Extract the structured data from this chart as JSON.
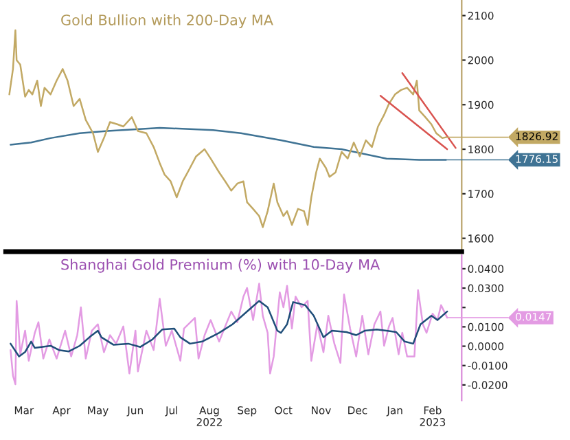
{
  "chart_data": [
    {
      "type": "line",
      "title": "Gold Bullion with 200-Day MA",
      "tick_labels": "y",
      "xlim": [
        "2022-02-14",
        "2023-02-25"
      ],
      "xticks": [
        {
          "value": "2022-03-01",
          "label": null
        },
        {
          "value": "2022-04-01",
          "label": null
        },
        {
          "value": "2022-05-01",
          "label": null
        },
        {
          "value": "2022-06-01",
          "label": null
        },
        {
          "value": "2022-07-01",
          "label": null
        },
        {
          "value": "2022-08-01",
          "label": null
        },
        {
          "value": "2022-09-01",
          "label": null
        },
        {
          "value": "2022-10-01",
          "label": null
        },
        {
          "value": "2022-11-01",
          "label": null
        },
        {
          "value": "2022-12-01",
          "label": null
        },
        {
          "value": "2023-01-01",
          "label": null
        },
        {
          "value": "2023-02-01",
          "label": null
        }
      ],
      "ylim": [
        1570,
        2135
      ],
      "yticks": [
        1600,
        1700,
        1800,
        1900,
        2000,
        2100
      ],
      "series": [
        {
          "color": "#3f7394",
          "value_labels": [
            null,
            null,
            null,
            null,
            null,
            null,
            null,
            null,
            null,
            null,
            null,
            null,
            null,
            "1776.15"
          ],
          "x": [
            "2022-02-18",
            "2022-03-07",
            "2022-03-23",
            "2022-04-16",
            "2022-05-09",
            "2022-06-21",
            "2022-08-04",
            "2022-08-27",
            "2022-09-29",
            "2022-10-26",
            "2022-11-18",
            "2022-12-25",
            "2023-01-21",
            "2023-02-12"
          ],
          "values": [
            1810,
            1815,
            1825,
            1836,
            1841,
            1848,
            1843,
            1836,
            1820,
            1805,
            1800,
            1779,
            1776,
            1776.15
          ]
        },
        {
          "color": "#c2a964",
          "value_labels": [
            null,
            null,
            null,
            null,
            null,
            null,
            null,
            null,
            null,
            null,
            null,
            null,
            null,
            null,
            null,
            null,
            null,
            null,
            null,
            null,
            null,
            null,
            null,
            null,
            null,
            null,
            null,
            null,
            null,
            null,
            null,
            null,
            null,
            null,
            null,
            null,
            null,
            null,
            null,
            null,
            null,
            null,
            null,
            null,
            null,
            null,
            null,
            null,
            null,
            null,
            null,
            null,
            null,
            null,
            null,
            null,
            null,
            null,
            null,
            null,
            null,
            null,
            null,
            null,
            null,
            null,
            null,
            null,
            null,
            null,
            null,
            null,
            null,
            null,
            null,
            null,
            null,
            null,
            null,
            null,
            "1826.92"
          ],
          "x": [
            "2022-02-17",
            "2022-02-20",
            "2022-02-22",
            "2022-02-23",
            "2022-02-26",
            "2022-03-02",
            "2022-03-05",
            "2022-03-08",
            "2022-03-12",
            "2022-03-15",
            "2022-03-18",
            "2022-03-23",
            "2022-03-28",
            "2022-04-02",
            "2022-04-06",
            "2022-04-11",
            "2022-04-16",
            "2022-04-21",
            "2022-04-27",
            "2022-05-01",
            "2022-05-06",
            "2022-05-11",
            "2022-05-17",
            "2022-05-22",
            "2022-05-29",
            "2022-06-03",
            "2022-06-10",
            "2022-06-16",
            "2022-06-21",
            "2022-06-25",
            "2022-06-30",
            "2022-07-05",
            "2022-07-10",
            "2022-07-15",
            "2022-07-21",
            "2022-07-28",
            "2022-08-02",
            "2022-08-09",
            "2022-08-14",
            "2022-08-19",
            "2022-08-24",
            "2022-08-29",
            "2022-09-01",
            "2022-09-06",
            "2022-09-11",
            "2022-09-14",
            "2022-09-18",
            "2022-09-23",
            "2022-09-26",
            "2022-10-01",
            "2022-10-04",
            "2022-10-08",
            "2022-10-13",
            "2022-10-18",
            "2022-10-21",
            "2022-10-24",
            "2022-10-28",
            "2022-10-31",
            "2022-11-05",
            "2022-11-08",
            "2022-11-13",
            "2022-11-18",
            "2022-11-23",
            "2022-11-28",
            "2022-12-03",
            "2022-12-08",
            "2022-12-13",
            "2022-12-18",
            "2022-12-23",
            "2022-12-27",
            "2023-01-01",
            "2023-01-06",
            "2023-01-11",
            "2023-01-16",
            "2023-01-19",
            "2023-01-21",
            "2023-01-26",
            "2023-01-31",
            "2023-02-04",
            "2023-02-09",
            "2023-02-12"
          ],
          "values": [
            1923,
            1980,
            2067,
            2000,
            1990,
            1918,
            1933,
            1923,
            1954,
            1897,
            1938,
            1923,
            1954,
            1980,
            1954,
            1897,
            1913,
            1866,
            1836,
            1794,
            1825,
            1861,
            1856,
            1851,
            1872,
            1841,
            1836,
            1805,
            1769,
            1743,
            1728,
            1692,
            1728,
            1753,
            1784,
            1800,
            1779,
            1748,
            1728,
            1707,
            1723,
            1728,
            1681,
            1666,
            1650,
            1625,
            1661,
            1723,
            1681,
            1650,
            1661,
            1630,
            1666,
            1661,
            1630,
            1692,
            1748,
            1779,
            1758,
            1738,
            1748,
            1794,
            1779,
            1815,
            1784,
            1820,
            1805,
            1851,
            1877,
            1902,
            1923,
            1933,
            1938,
            1923,
            1954,
            1887,
            1872,
            1856,
            1836,
            1825,
            1826.92
          ]
        },
        {
          "color": "#d9534f",
          "x": [
            "2022-12-20",
            "2023-02-13"
          ],
          "values": [
            1920,
            1800
          ]
        },
        {
          "color": "#d9534f",
          "x": [
            "2023-01-07",
            "2023-02-20"
          ],
          "values": [
            1971,
            1803
          ]
        }
      ]
    },
    {
      "type": "line",
      "title": "Shanghai Gold Premium (%) with 10-Day MA",
      "xlim": [
        "2022-02-14",
        "2023-02-25"
      ],
      "xticks": [
        {
          "value": "2022-03-01",
          "label": "Mar"
        },
        {
          "value": "2022-04-01",
          "label": "Apr"
        },
        {
          "value": "2022-05-01",
          "label": "May"
        },
        {
          "value": "2022-06-01",
          "label": "Jun"
        },
        {
          "value": "2022-07-01",
          "label": "Jul"
        },
        {
          "value": "2022-08-01",
          "label": "Aug\n2022"
        },
        {
          "value": "2022-09-01",
          "label": "Sep"
        },
        {
          "value": "2022-10-01",
          "label": "Oct"
        },
        {
          "value": "2022-11-01",
          "label": "Nov"
        },
        {
          "value": "2022-12-01",
          "label": "Dec"
        },
        {
          "value": "2023-01-01",
          "label": "Jan"
        },
        {
          "value": "2023-02-01",
          "label": "Feb\n2023"
        }
      ],
      "ylim": [
        -0.028,
        0.047
      ],
      "yticks": [
        {
          "value": -0.02,
          "label": "-0.0200"
        },
        {
          "value": -0.01,
          "label": "-0.0100"
        },
        {
          "value": 0.0,
          "label": "0.0000"
        },
        {
          "value": 0.01,
          "label": "0.0100"
        },
        {
          "value": 0.02,
          "label": null
        },
        {
          "value": 0.03,
          "label": "0.0300"
        },
        {
          "value": 0.04,
          "label": "0.0400"
        }
      ],
      "series": [
        {
          "color": "#e39be3",
          "value_labels": [
            null,
            null,
            null,
            null,
            null,
            null,
            null,
            null,
            null,
            null,
            null,
            null,
            null,
            null,
            null,
            null,
            null,
            null,
            null,
            null,
            null,
            null,
            null,
            null,
            null,
            null,
            null,
            null,
            null,
            null,
            null,
            null,
            null,
            null,
            null,
            null,
            null,
            null,
            null,
            null,
            null,
            null,
            null,
            null,
            null,
            null,
            null,
            null,
            null,
            null,
            null,
            null,
            null,
            null,
            null,
            null,
            null,
            null,
            null,
            null,
            null,
            null,
            null,
            null,
            null,
            null,
            null,
            null,
            null,
            null,
            null,
            null,
            null,
            null,
            null,
            null,
            null,
            null,
            null,
            null,
            null,
            null,
            "0.0147"
          ],
          "x": [
            "2022-02-18",
            "2022-02-20",
            "2022-02-22",
            "2022-02-23",
            "2022-02-26",
            "2022-03-02",
            "2022-03-05",
            "2022-03-10",
            "2022-03-13",
            "2022-03-17",
            "2022-03-22",
            "2022-03-28",
            "2022-04-04",
            "2022-04-09",
            "2022-04-14",
            "2022-04-17",
            "2022-04-21",
            "2022-04-26",
            "2022-05-01",
            "2022-05-06",
            "2022-05-11",
            "2022-05-16",
            "2022-05-22",
            "2022-05-27",
            "2022-06-01",
            "2022-06-03",
            "2022-06-10",
            "2022-06-16",
            "2022-06-21",
            "2022-06-26",
            "2022-07-01",
            "2022-07-08",
            "2022-07-11",
            "2022-07-20",
            "2022-07-23",
            "2022-07-28",
            "2022-08-02",
            "2022-08-09",
            "2022-08-14",
            "2022-08-19",
            "2022-08-24",
            "2022-08-29",
            "2022-09-01",
            "2022-09-06",
            "2022-09-11",
            "2022-09-14",
            "2022-09-18",
            "2022-09-20",
            "2022-09-23",
            "2022-09-28",
            "2022-10-01",
            "2022-10-04",
            "2022-10-08",
            "2022-10-11",
            "2022-10-16",
            "2022-10-21",
            "2022-10-24",
            "2022-10-29",
            "2022-11-03",
            "2022-11-07",
            "2022-11-12",
            "2022-11-17",
            "2022-11-20",
            "2022-11-25",
            "2022-11-30",
            "2022-12-05",
            "2022-12-10",
            "2022-12-15",
            "2022-12-20",
            "2022-12-23",
            "2022-12-27",
            "2022-12-30",
            "2023-01-04",
            "2023-01-07",
            "2023-01-11",
            "2023-01-17",
            "2023-01-20",
            "2023-01-24",
            "2023-01-27",
            "2023-02-01",
            "2023-02-05",
            "2023-02-08",
            "2023-02-13"
          ],
          "values": [
            -0.002,
            -0.0152,
            -0.0197,
            0.0234,
            -0.0042,
            0.008,
            -0.0075,
            0.0069,
            0.0124,
            -0.0064,
            0.0035,
            -0.0064,
            0.008,
            -0.0053,
            0.0057,
            0.0201,
            -0.0064,
            0.008,
            0.0113,
            -0.0031,
            0.0057,
            0.0013,
            0.0102,
            -0.0141,
            0.008,
            -0.013,
            0.008,
            -0.002,
            0.0245,
            0.0002,
            0.008,
            -0.0075,
            0.0091,
            0.0146,
            -0.0064,
            0.0057,
            0.0135,
            0.0024,
            0.0102,
            0.0179,
            0.0124,
            0.0256,
            0.0301,
            0.0135,
            0.0323,
            0.0157,
            0.0069,
            -0.0141,
            -0.0053,
            0.0278,
            0.0201,
            0.0312,
            0.0091,
            0.0256,
            0.0201,
            0.0234,
            -0.0075,
            0.0113,
            -0.0031,
            0.0157,
            0.0013,
            -0.0086,
            0.0267,
            0.0091,
            -0.0053,
            0.0157,
            -0.0042,
            0.0113,
            0.0179,
            0.0002,
            0.0102,
            0.0146,
            -0.0042,
            0.0069,
            -0.0053,
            -0.0053,
            0.029,
            0.0113,
            0.0069,
            0.0168,
            0.0135,
            0.0212,
            0.0147
          ]
        },
        {
          "color": "#1f4e79",
          "x": [
            "2022-02-18",
            "2022-02-25",
            "2022-03-02",
            "2022-03-07",
            "2022-03-10",
            "2022-03-23",
            "2022-03-30",
            "2022-04-07",
            "2022-04-16",
            "2022-04-24",
            "2022-05-01",
            "2022-05-04",
            "2022-05-14",
            "2022-05-26",
            "2022-06-05",
            "2022-06-15",
            "2022-06-23",
            "2022-07-03",
            "2022-07-08",
            "2022-07-16",
            "2022-07-26",
            "2022-08-09",
            "2022-08-20",
            "2022-09-03",
            "2022-09-11",
            "2022-09-18",
            "2022-09-26",
            "2022-09-29",
            "2022-10-04",
            "2022-10-09",
            "2022-10-19",
            "2022-10-26",
            "2022-11-03",
            "2022-11-10",
            "2022-11-22",
            "2022-11-30",
            "2022-12-07",
            "2022-12-17",
            "2022-12-25",
            "2023-01-02",
            "2023-01-09",
            "2023-01-16",
            "2023-01-22",
            "2023-01-31",
            "2023-02-05",
            "2023-02-13"
          ],
          "values": [
            0.0013,
            -0.0053,
            -0.003,
            0.0024,
            -0.0009,
            0.0002,
            -0.002,
            -0.0027,
            0.0002,
            0.0046,
            0.008,
            0.0046,
            0.0007,
            0.0013,
            -0.0004,
            0.0035,
            0.0086,
            0.0091,
            0.0046,
            0.0013,
            0.0024,
            0.0069,
            0.0113,
            0.019,
            0.0234,
            0.0201,
            0.008,
            0.0069,
            0.0113,
            0.0228,
            0.0212,
            0.0157,
            0.0046,
            0.008,
            0.0073,
            0.0057,
            0.008,
            0.0086,
            0.008,
            0.0073,
            0.0024,
            0.0013,
            0.0113,
            0.0157,
            0.0135,
            0.0179
          ]
        }
      ]
    }
  ]
}
